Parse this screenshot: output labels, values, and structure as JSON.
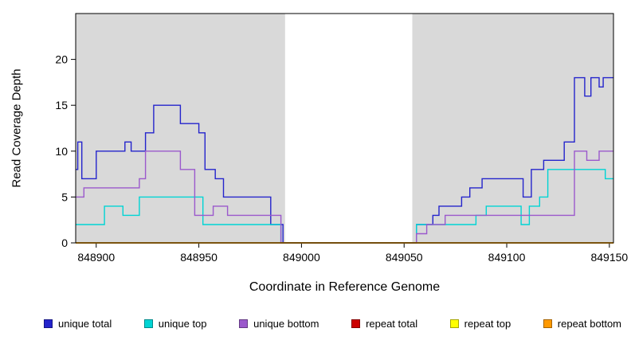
{
  "chart_data": {
    "type": "line",
    "step": true,
    "title": "",
    "xlabel": "Coordinate in Reference Genome",
    "ylabel": "Read Coverage Depth",
    "xlim": [
      848890,
      849152
    ],
    "ylim": [
      0,
      25
    ],
    "x_ticks": [
      848900,
      848950,
      849000,
      849050,
      849100,
      849150
    ],
    "y_ticks": [
      0,
      5,
      10,
      15,
      20
    ],
    "plot_background": "#d9d9d9",
    "axis_color": "#000000",
    "grid": false,
    "legend_position": "bottom",
    "gap_region": {
      "start": 848992,
      "end": 849054,
      "color": "#ffffff"
    },
    "series": [
      {
        "name": "unique total",
        "color": "#2424cc",
        "points": [
          [
            848890,
            8
          ],
          [
            848891,
            11
          ],
          [
            848893,
            7
          ],
          [
            848900,
            10
          ],
          [
            848914,
            11
          ],
          [
            848917,
            10
          ],
          [
            848924,
            12
          ],
          [
            848928,
            15
          ],
          [
            848941,
            13
          ],
          [
            848950,
            12
          ],
          [
            848953,
            8
          ],
          [
            848958,
            7
          ],
          [
            848962,
            5
          ],
          [
            848985,
            2
          ],
          [
            848991,
            0
          ],
          [
            849056,
            2
          ],
          [
            849064,
            3
          ],
          [
            849067,
            4
          ],
          [
            849078,
            5
          ],
          [
            849082,
            6
          ],
          [
            849088,
            7
          ],
          [
            849108,
            5
          ],
          [
            849112,
            8
          ],
          [
            849118,
            9
          ],
          [
            849128,
            11
          ],
          [
            849133,
            18
          ],
          [
            849138,
            16
          ],
          [
            849141,
            18
          ],
          [
            849145,
            17
          ],
          [
            849147,
            18
          ],
          [
            849152,
            18
          ]
        ]
      },
      {
        "name": "unique top",
        "color": "#00d4d4",
        "points": [
          [
            848890,
            2
          ],
          [
            848904,
            4
          ],
          [
            848913,
            3
          ],
          [
            848921,
            5
          ],
          [
            848952,
            2
          ],
          [
            848990,
            0
          ],
          [
            849056,
            2
          ],
          [
            849085,
            3
          ],
          [
            849090,
            4
          ],
          [
            849107,
            2
          ],
          [
            849111,
            4
          ],
          [
            849116,
            5
          ],
          [
            849120,
            8
          ],
          [
            849148,
            7
          ],
          [
            849152,
            7
          ]
        ]
      },
      {
        "name": "unique bottom",
        "color": "#9b59cc",
        "points": [
          [
            848890,
            5
          ],
          [
            848894,
            6
          ],
          [
            848921,
            7
          ],
          [
            848924,
            10
          ],
          [
            848941,
            8
          ],
          [
            848948,
            3
          ],
          [
            848957,
            4
          ],
          [
            848964,
            3
          ],
          [
            848990,
            0
          ],
          [
            849056,
            1
          ],
          [
            849061,
            2
          ],
          [
            849070,
            3
          ],
          [
            849133,
            10
          ],
          [
            849139,
            9
          ],
          [
            849145,
            10
          ],
          [
            849152,
            10
          ]
        ]
      },
      {
        "name": "repeat total",
        "color": "#cc0000",
        "points": [
          [
            848890,
            0
          ],
          [
            849152,
            0
          ]
        ]
      },
      {
        "name": "repeat top",
        "color": "#ffff00",
        "points": [
          [
            848890,
            0
          ],
          [
            849152,
            0
          ]
        ]
      },
      {
        "name": "repeat bottom",
        "color": "#ff9900",
        "points": [
          [
            848890,
            0
          ],
          [
            849152,
            0
          ]
        ]
      }
    ]
  }
}
